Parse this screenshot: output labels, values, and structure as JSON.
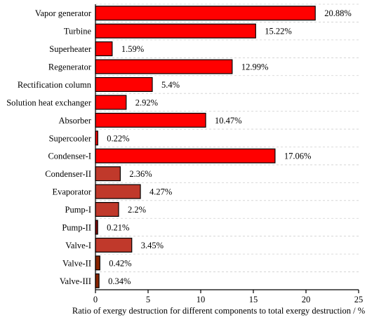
{
  "chart_data": {
    "type": "bar",
    "orientation": "horizontal",
    "categories": [
      "Vapor generator",
      "Turbine",
      "Superheater",
      "Regenerator",
      "Rectification column",
      "Solution heat exchanger",
      "Absorber",
      "Supercooler",
      "Condenser-I",
      "Condenser-II",
      "Evaporator",
      "Pump-I",
      "Pump-II",
      "Valve-I",
      "Valve-II",
      "Valve-III"
    ],
    "values": [
      20.88,
      15.22,
      1.59,
      12.99,
      5.4,
      2.92,
      10.47,
      0.22,
      17.06,
      2.36,
      4.27,
      2.2,
      0.21,
      3.45,
      0.42,
      0.34
    ],
    "value_labels": [
      "20.88%",
      "15.22%",
      "1.59%",
      "12.99%",
      "5.4%",
      "2.92%",
      "10.47%",
      "0.22%",
      "17.06%",
      "2.36%",
      "4.27%",
      "2.2%",
      "0.21%",
      "3.45%",
      "0.42%",
      "0.34%"
    ],
    "bar_colors": [
      "#ff0000",
      "#ff0000",
      "#ff0000",
      "#ff0000",
      "#ff0000",
      "#ff0000",
      "#ff0000",
      "#ff0000",
      "#ff0000",
      "#c0392b",
      "#c0392b",
      "#c0392b",
      "#8b0000",
      "#c0392b",
      "#8b2500",
      "#8b2500"
    ],
    "xlabel": "Ratio of exergy destruction for different components to total exergy destruction / %",
    "ylabel": "",
    "xlim": [
      0,
      25
    ],
    "xticks": [
      0,
      5,
      10,
      15,
      20,
      25
    ],
    "grid": "horizontal dashed",
    "legend": "none"
  }
}
